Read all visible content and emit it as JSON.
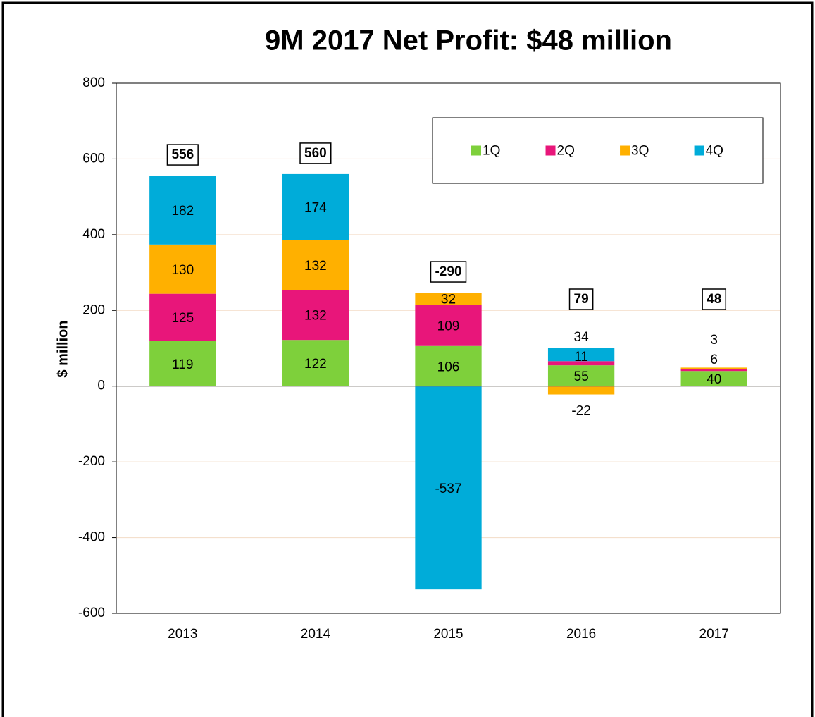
{
  "chart_data": {
    "type": "stacked_bar",
    "title": "9M 2017 Net Profit: $48 million",
    "ylabel": "$ million",
    "categories": [
      "2013",
      "2014",
      "2015",
      "2016",
      "2017"
    ],
    "series": [
      {
        "name": "1Q",
        "color": "#7ed03b",
        "values": [
          119,
          122,
          106,
          55,
          40
        ]
      },
      {
        "name": "2Q",
        "color": "#e8167a",
        "values": [
          125,
          132,
          109,
          11,
          6
        ]
      },
      {
        "name": "3Q",
        "color": "#ffb000",
        "values": [
          130,
          132,
          32,
          -22,
          3
        ]
      },
      {
        "name": "4Q",
        "color": "#00acd9",
        "values": [
          182,
          174,
          -537,
          34,
          null
        ]
      }
    ],
    "totals": [
      556,
      560,
      -290,
      79,
      48
    ],
    "ylim": [
      -600,
      800
    ],
    "yticks": [
      -600,
      -400,
      -200,
      0,
      200,
      400,
      600,
      800
    ],
    "grid": true,
    "legend": "top-right"
  }
}
